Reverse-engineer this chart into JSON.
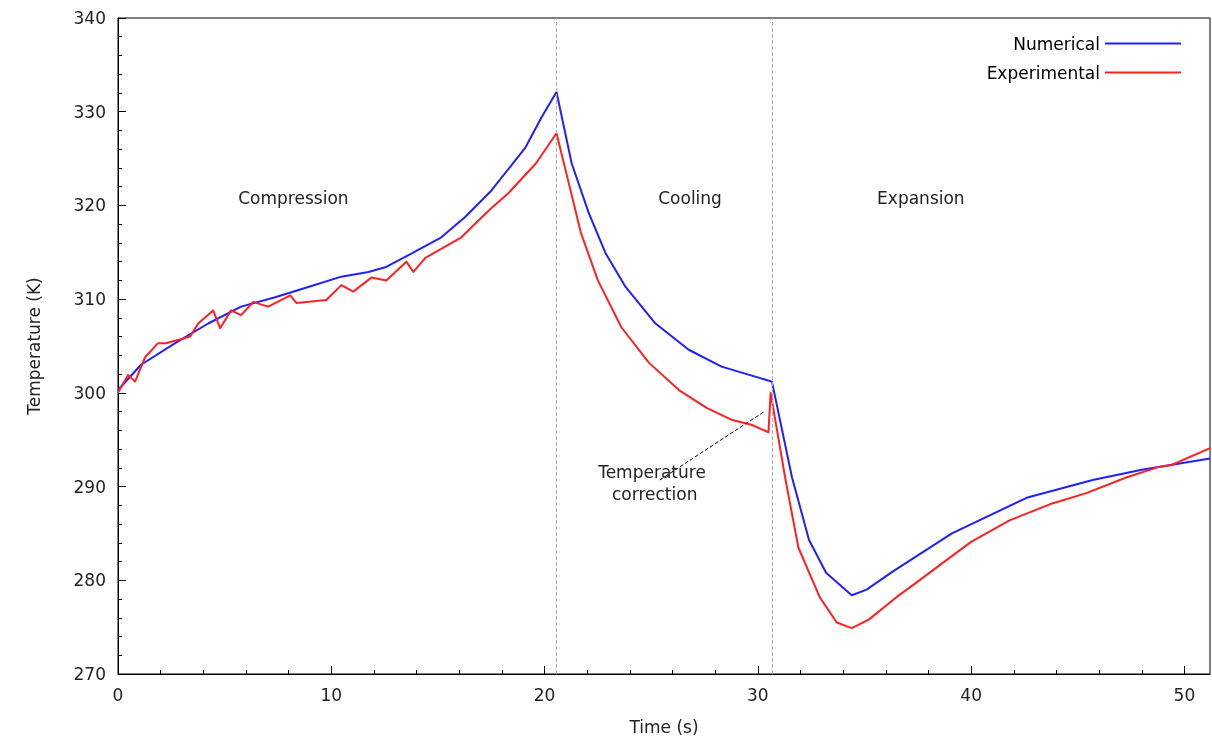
{
  "chart_data": {
    "type": "line",
    "xlabel": "Time (s)",
    "ylabel": "Temperature (K)",
    "xlim": [
      0,
      51.2
    ],
    "xticks": [
      0,
      10,
      20,
      30,
      40,
      50
    ],
    "ylim": [
      270,
      340
    ],
    "yticks": [
      270,
      280,
      290,
      300,
      310,
      320,
      330,
      340
    ],
    "grid": false,
    "legend": "top right",
    "line_style": "solid",
    "series": [
      {
        "name": "Numerical",
        "color": "#2020ff",
        "x": [
          0,
          1.08,
          2.68,
          4.23,
          5.77,
          7.37,
          8.92,
          10.47,
          11.74,
          12.53,
          13.62,
          15.16,
          16.29,
          17.51,
          19.11,
          19.86,
          20.56,
          21.27,
          22.07,
          22.86,
          23.8,
          25.2,
          26.76,
          28.3,
          30.66,
          31.6,
          32.4,
          33.2,
          34.4,
          35.1,
          36.3,
          39.1,
          42.6,
          45.7,
          48.0,
          51.2
        ],
        "values": [
          300.3,
          303.0,
          305.3,
          307.4,
          309.2,
          310.2,
          311.3,
          312.4,
          312.9,
          313.4,
          314.7,
          316.6,
          318.8,
          321.6,
          326.2,
          329.4,
          332.1,
          324.5,
          319.2,
          314.9,
          311.3,
          307.4,
          304.6,
          302.8,
          301.2,
          291.0,
          284.3,
          280.8,
          278.4,
          279.0,
          280.9,
          285.0,
          288.8,
          290.7,
          291.8,
          293.0
        ]
      },
      {
        "name": "Experimental",
        "color": "#ff2020",
        "x": [
          0,
          0.47,
          0.8,
          1.27,
          1.88,
          2.25,
          3.38,
          3.76,
          4.46,
          4.79,
          5.3,
          5.77,
          6.34,
          7.04,
          8.08,
          8.36,
          9.77,
          10.47,
          11.03,
          11.88,
          12.58,
          13.52,
          13.85,
          14.41,
          16.1,
          16.9,
          17.5,
          18.3,
          19.6,
          20.56,
          21.1,
          21.7,
          22.5,
          23.6,
          24.9,
          26.3,
          27.6,
          28.8,
          29.7,
          30.5,
          30.6,
          31.3,
          31.9,
          32.9,
          33.7,
          34.4,
          35.2,
          36.5,
          37.4,
          38.4,
          40.0,
          41.8,
          43.8,
          45.4,
          47.3,
          48.8,
          49.4,
          51.2
        ],
        "values": [
          300.0,
          301.9,
          301.2,
          303.8,
          305.3,
          305.3,
          306.0,
          307.4,
          308.8,
          306.9,
          308.8,
          308.3,
          309.7,
          309.2,
          310.4,
          309.6,
          309.9,
          311.5,
          310.8,
          312.3,
          312.0,
          314.0,
          312.9,
          314.4,
          316.6,
          318.4,
          319.7,
          321.3,
          324.5,
          327.7,
          322.7,
          317.1,
          312.0,
          307.0,
          303.2,
          300.3,
          298.4,
          297.1,
          296.6,
          295.8,
          300.0,
          290.7,
          283.5,
          278.2,
          275.5,
          274.9,
          275.8,
          278.2,
          279.7,
          281.4,
          284.1,
          286.4,
          288.2,
          289.3,
          291.0,
          292.1,
          292.3,
          294.1
        ]
      }
    ],
    "ref_lines": [
      {
        "axis": "x",
        "value": 20.56,
        "color": "#b0b0b0",
        "line_style": "dashed"
      },
      {
        "axis": "x",
        "value": 30.66,
        "color": "#b0b0b0",
        "line_style": "dashed"
      }
    ],
    "annotations": [
      "Compression",
      "Cooling",
      "Expansion",
      {
        "text": "Temperature correction",
        "x": 30.3,
        "y": 298
      }
    ]
  }
}
